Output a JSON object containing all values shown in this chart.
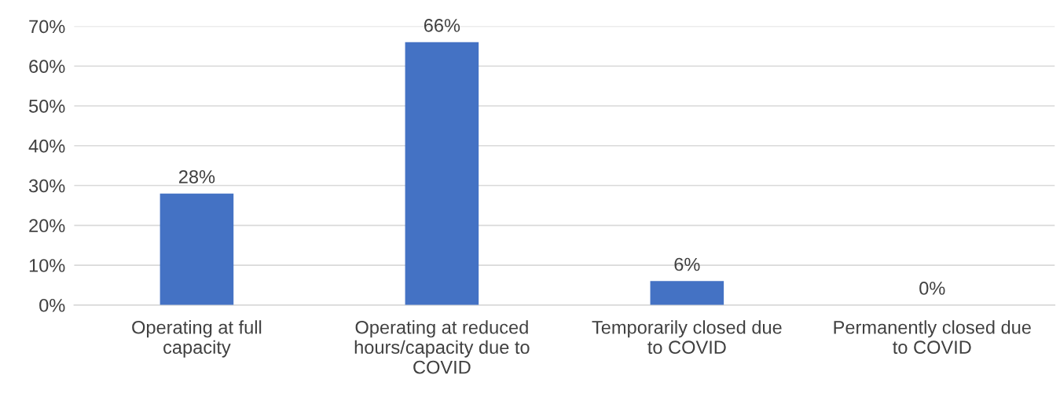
{
  "chart_data": {
    "type": "bar",
    "categories": [
      "Operating at full\ncapacity",
      "Operating at reduced\nhours/capacity due to\nCOVID",
      "Temporarily closed due\nto COVID",
      "Permanently closed due\nto COVID"
    ],
    "values": [
      28,
      66,
      6,
      0
    ],
    "color": "#4472c4",
    "data_labels": true,
    "value_labels": [
      "28%",
      "66%",
      "6%",
      "0%"
    ],
    "ylim": [
      0,
      70
    ],
    "yticks": [
      {
        "value": 0,
        "label": "0%"
      },
      {
        "value": 10,
        "label": "10%"
      },
      {
        "value": 20,
        "label": "20%"
      },
      {
        "value": 30,
        "label": "30%"
      },
      {
        "value": 40,
        "label": "40%"
      },
      {
        "value": 50,
        "label": "50%"
      },
      {
        "value": 60,
        "label": "60%"
      },
      {
        "value": 70,
        "label": "70%"
      }
    ],
    "grid": "y",
    "legend": false
  }
}
